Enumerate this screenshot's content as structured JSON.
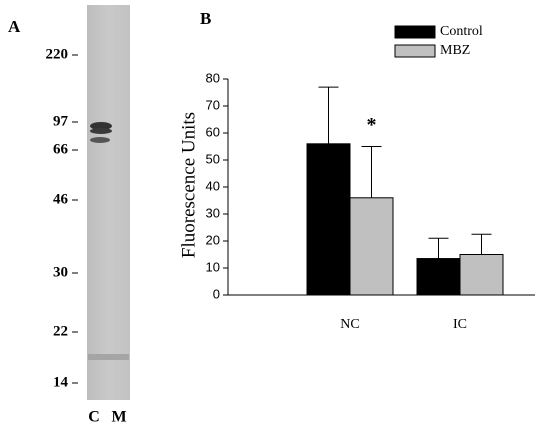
{
  "gel": {
    "panel_label": "A",
    "markers": [
      "220",
      "97",
      "66",
      "46",
      "30",
      "22",
      "14"
    ],
    "lanes": [
      "C",
      "M"
    ]
  },
  "chart_data": {
    "type": "bar",
    "panel_label": "B",
    "y_label": "Fluorescence Units",
    "categories": [
      "NC",
      "IC"
    ],
    "series": [
      {
        "name": "Control",
        "color": "#000000",
        "values": [
          56,
          13.5
        ],
        "errors": [
          21,
          7.5
        ]
      },
      {
        "name": "MBZ",
        "color": "#c0c0c0",
        "values": [
          36,
          15
        ],
        "errors": [
          19,
          7.5
        ]
      }
    ],
    "annotation": "*",
    "ylim": [
      0,
      80
    ],
    "yticks": [
      0,
      10,
      20,
      30,
      40,
      50,
      60,
      70,
      80
    ]
  }
}
